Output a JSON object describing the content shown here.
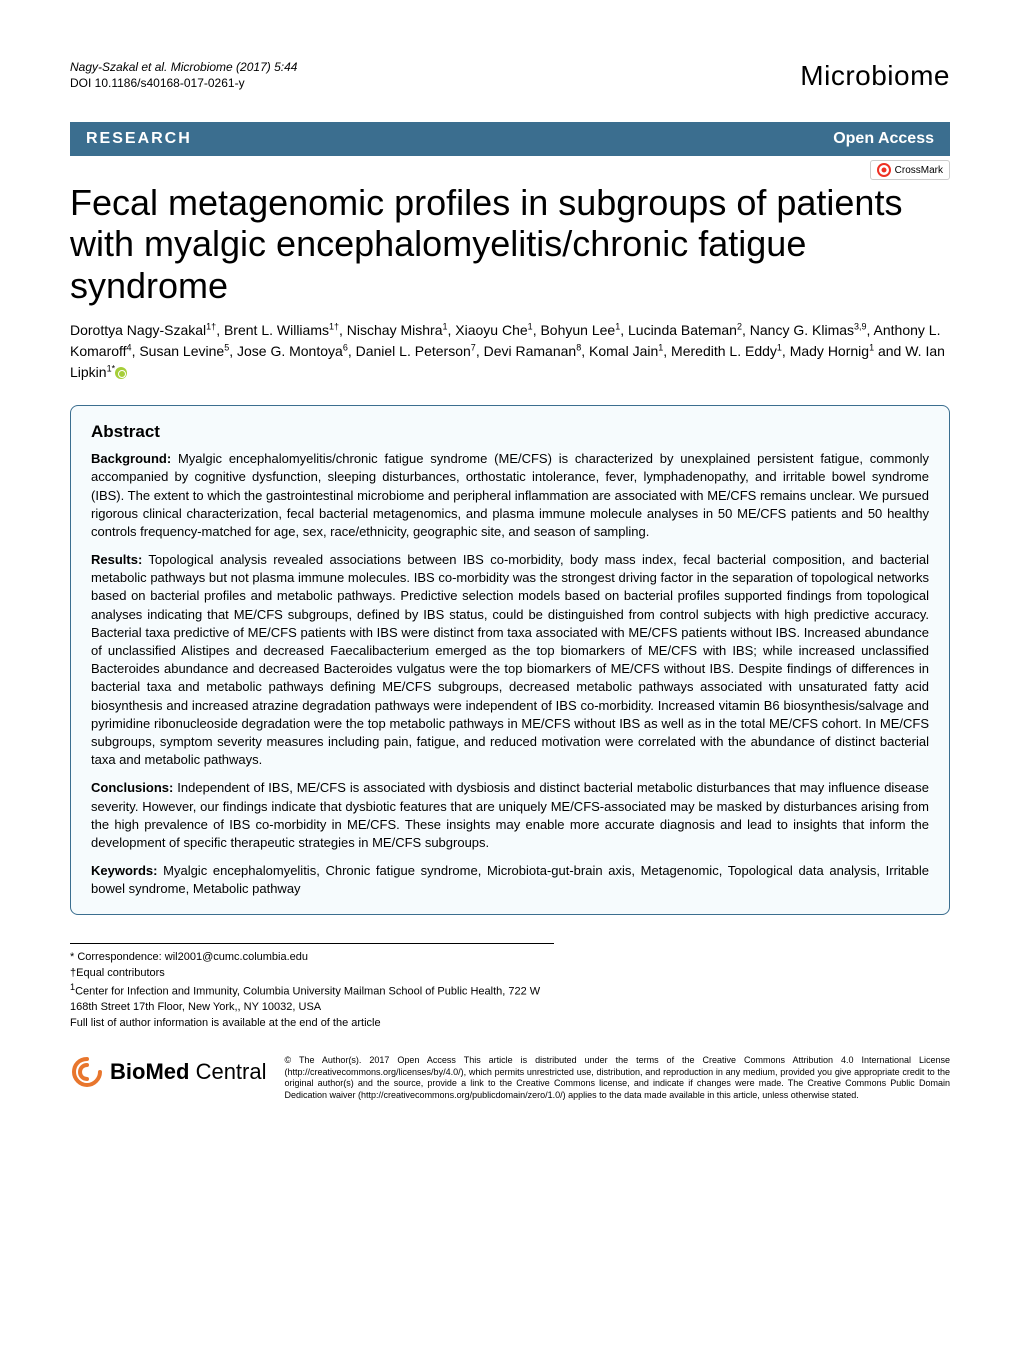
{
  "header": {
    "citation_line1": "Nagy-Szakal et al. Microbiome  (2017) 5:44",
    "citation_line2": "DOI 10.1186/s40168-017-0261-y",
    "journal_name": "Microbiome"
  },
  "banner": {
    "type_label": "RESEARCH",
    "open_access": "Open Access"
  },
  "crossmark_label": "CrossMark",
  "title": "Fecal metagenomic profiles in subgroups of patients with myalgic encephalomyelitis/chronic fatigue syndrome",
  "authors_html": "Dorottya Nagy-Szakal<sup>1†</sup>, Brent L. Williams<sup>1†</sup>, Nischay Mishra<sup>1</sup>, Xiaoyu Che<sup>1</sup>, Bohyun Lee<sup>1</sup>, Lucinda Bateman<sup>2</sup>, Nancy G. Klimas<sup>3,9</sup>, Anthony L. Komaroff<sup>4</sup>, Susan Levine<sup>5</sup>, Jose G. Montoya<sup>6</sup>, Daniel L. Peterson<sup>7</sup>, Devi Ramanan<sup>8</sup>, Komal Jain<sup>1</sup>, Meredith L. Eddy<sup>1</sup>, Mady Hornig<sup>1</sup> and W. Ian Lipkin<sup>1*</sup>",
  "abstract": {
    "heading": "Abstract",
    "background_label": "Background:",
    "background": " Myalgic encephalomyelitis/chronic fatigue syndrome (ME/CFS) is characterized by unexplained persistent fatigue, commonly accompanied by cognitive dysfunction, sleeping disturbances, orthostatic intolerance, fever, lymphadenopathy, and irritable bowel syndrome (IBS). The extent to which the gastrointestinal microbiome and peripheral inflammation are associated with ME/CFS remains unclear. We pursued rigorous clinical characterization, fecal bacterial metagenomics, and plasma immune molecule analyses in 50 ME/CFS patients and 50 healthy controls frequency-matched for age, sex, race/ethnicity, geographic site, and season of sampling.",
    "results_label": "Results:",
    "results": " Topological analysis revealed associations between IBS co-morbidity, body mass index, fecal bacterial composition, and bacterial metabolic pathways but not plasma immune molecules. IBS co-morbidity was the strongest driving factor in the separation of topological networks based on bacterial profiles and metabolic pathways. Predictive selection models based on bacterial profiles supported findings from topological analyses indicating that ME/CFS subgroups, defined by IBS status, could be distinguished from control subjects with high predictive accuracy. Bacterial taxa predictive of ME/CFS patients with IBS were distinct from taxa associated with ME/CFS patients without IBS. Increased abundance of unclassified Alistipes and decreased Faecalibacterium emerged as the top biomarkers of ME/CFS with IBS; while increased unclassified Bacteroides abundance and decreased Bacteroides vulgatus were the top biomarkers of ME/CFS without IBS. Despite findings of differences in bacterial taxa and metabolic pathways defining ME/CFS subgroups, decreased metabolic pathways associated with unsaturated fatty acid biosynthesis and increased atrazine degradation pathways were independent of IBS co-morbidity. Increased vitamin B6 biosynthesis/salvage and pyrimidine ribonucleoside degradation were the top metabolic pathways in ME/CFS without IBS as well as in the total ME/CFS cohort. In ME/CFS subgroups, symptom severity measures including pain, fatigue, and reduced motivation were correlated with the abundance of distinct bacterial taxa and metabolic pathways.",
    "conclusions_label": "Conclusions:",
    "conclusions": " Independent of IBS, ME/CFS is associated with dysbiosis and distinct bacterial metabolic disturbances that may influence disease severity. However, our findings indicate that dysbiotic features that are uniquely ME/CFS-associated may be masked by disturbances arising from the high prevalence of IBS co-morbidity in ME/CFS. These insights may enable more accurate diagnosis and lead to insights that inform the development of specific therapeutic strategies in ME/CFS subgroups.",
    "keywords_label": "Keywords:",
    "keywords": " Myalgic encephalomyelitis, Chronic fatigue syndrome, Microbiota-gut-brain axis, Metagenomic, Topological data analysis, Irritable bowel syndrome, Metabolic pathway"
  },
  "footnotes": {
    "correspondence": "* Correspondence: wil2001@cumc.columbia.edu",
    "equal": "†Equal contributors",
    "affiliation": "1Center for Infection and Immunity, Columbia University Mailman School of Public Health, 722 W 168th Street 17th Floor, New York,, NY 10032, USA",
    "full_list": "Full list of author information is available at the end of the article"
  },
  "footer": {
    "logo_text": "BioMed Central",
    "license": "© The Author(s). 2017 Open Access This article is distributed under the terms of the Creative Commons Attribution 4.0 International License (http://creativecommons.org/licenses/by/4.0/), which permits unrestricted use, distribution, and reproduction in any medium, provided you give appropriate credit to the original author(s) and the source, provide a link to the Creative Commons license, and indicate if changes were made. The Creative Commons Public Domain Dedication waiver (http://creativecommons.org/publicdomain/zero/1.0/) applies to the data made available in this article, unless otherwise stated."
  },
  "colors": {
    "banner_bg": "#3b6e8f",
    "abstract_bg": "#f6fbfd",
    "crossmark_circle": "#ee3124",
    "bmc_swirl": "#e8762d"
  }
}
